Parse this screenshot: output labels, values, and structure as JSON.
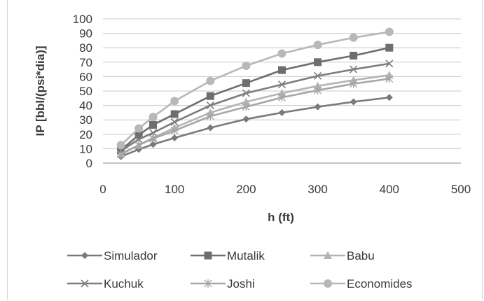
{
  "chart_data": {
    "type": "line",
    "xlabel": "h (ft)",
    "ylabel": "IP [bbl/(psi*dia)]",
    "xlim": [
      0,
      500
    ],
    "ylim": [
      0,
      100
    ],
    "x_ticks": [
      "0",
      "100",
      "200",
      "300",
      "400",
      "500"
    ],
    "y_ticks": [
      "0",
      "10",
      "20",
      "30",
      "40",
      "50",
      "60",
      "70",
      "80",
      "90",
      "100"
    ],
    "grid": "horizontal",
    "legend_position": "bottom",
    "x": [
      25,
      50,
      70,
      100,
      150,
      200,
      250,
      300,
      350,
      400
    ],
    "series": [
      {
        "name": "Simulador",
        "marker": "diamond",
        "color": "#7a7a7a",
        "values": [
          4.5,
          9.5,
          13,
          17.5,
          24.5,
          30.5,
          35,
          39,
          42.5,
          45.5
        ]
      },
      {
        "name": "Mutalik",
        "marker": "square",
        "color": "#6e6e6e",
        "values": [
          9,
          19.5,
          26.5,
          34,
          46.5,
          55.5,
          64.5,
          70,
          74.5,
          80
        ]
      },
      {
        "name": "Babu",
        "marker": "triangle",
        "color": "#b4b4b4",
        "values": [
          6.5,
          12.5,
          17.5,
          24.5,
          35,
          42.5,
          48.5,
          53.5,
          57.5,
          61
        ]
      },
      {
        "name": "Kuchuk",
        "marker": "x",
        "color": "#7c7c7c",
        "values": [
          8.5,
          16.5,
          21,
          28.5,
          40,
          48.5,
          54.5,
          60.5,
          65,
          69
        ]
      },
      {
        "name": "Joshi",
        "marker": "star",
        "color": "#a6a6a6",
        "values": [
          6,
          12.5,
          17,
          22.5,
          32.5,
          39,
          45.5,
          50.5,
          55,
          58.5
        ]
      },
      {
        "name": "Economides",
        "marker": "circle",
        "color": "#b8b8b8",
        "values": [
          12.5,
          24,
          32,
          43,
          57,
          67.5,
          76,
          82,
          87,
          91
        ]
      }
    ]
  }
}
